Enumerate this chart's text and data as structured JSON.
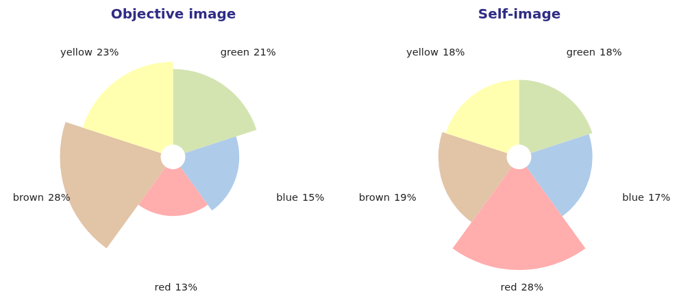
{
  "chart_data": [
    {
      "type": "other",
      "title": "Objective image",
      "categories": [
        "green",
        "blue",
        "red",
        "brown",
        "yellow"
      ],
      "values": [
        21,
        15,
        13,
        28,
        23
      ],
      "colors": [
        "#d3e4b1",
        "#afcbea",
        "#ffadad",
        "#e2c4a7",
        "#ffffaf"
      ],
      "value_labels": [
        "21%",
        "15%",
        "13%",
        "28%",
        "23%"
      ]
    },
    {
      "type": "other",
      "title": "Self-image",
      "categories": [
        "green",
        "blue",
        "red",
        "brown",
        "yellow"
      ],
      "values": [
        18,
        17,
        28,
        19,
        18
      ],
      "colors": [
        "#d3e4b1",
        "#afcbea",
        "#ffadad",
        "#e2c4a7",
        "#ffffaf"
      ],
      "value_labels": [
        "18%",
        "17%",
        "28%",
        "19%",
        "18%"
      ]
    }
  ]
}
